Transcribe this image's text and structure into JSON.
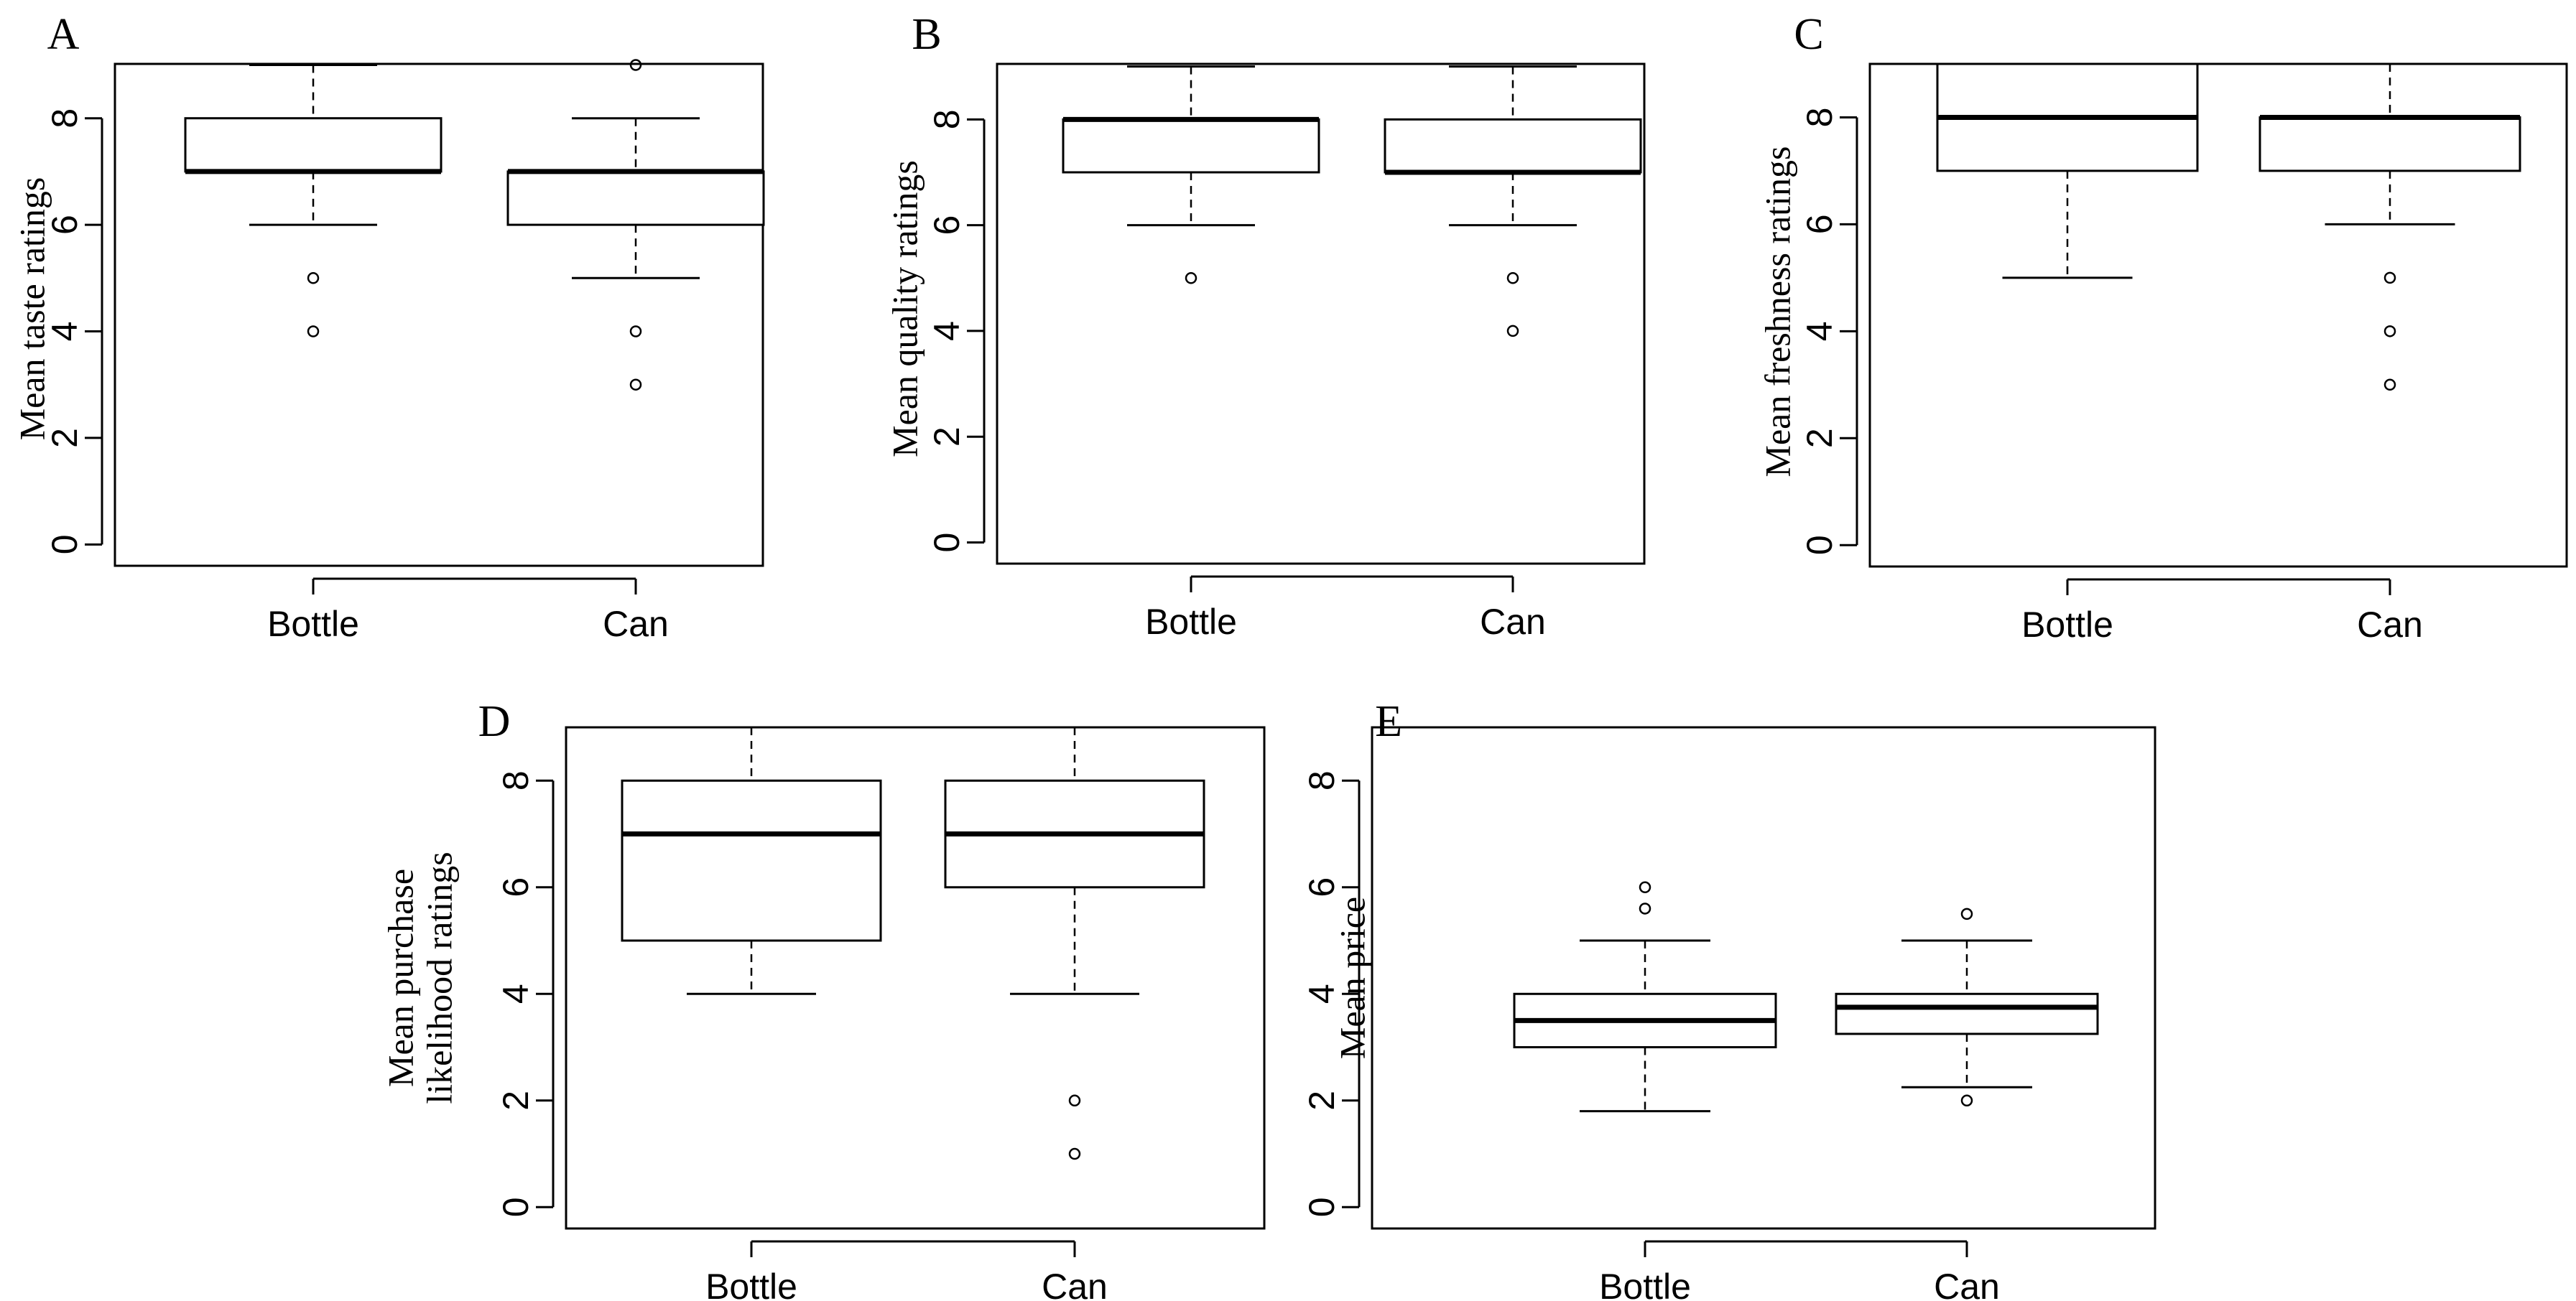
{
  "chart_data": [
    {
      "panel": "A",
      "type": "boxplot",
      "ylabel": [
        "Mean taste ratings"
      ],
      "categories": [
        "Bottle",
        "Can"
      ],
      "ylim": [
        0,
        9
      ],
      "yticks": [
        0,
        2,
        4,
        6,
        8
      ],
      "boxes": [
        {
          "name": "Bottle",
          "whisker_low": 6,
          "q1": 7,
          "median": 7,
          "q3": 8,
          "whisker_high": 9,
          "outliers": [
            5,
            4
          ]
        },
        {
          "name": "Can",
          "whisker_low": 5,
          "q1": 6,
          "median": 7,
          "q3": 7,
          "whisker_high": 8,
          "outliers": [
            9,
            4,
            3
          ]
        }
      ]
    },
    {
      "panel": "B",
      "type": "boxplot",
      "ylabel": [
        "Mean quality ratings"
      ],
      "categories": [
        "Bottle",
        "Can"
      ],
      "ylim": [
        0,
        9
      ],
      "yticks": [
        0,
        2,
        4,
        6,
        8
      ],
      "boxes": [
        {
          "name": "Bottle",
          "whisker_low": 6,
          "q1": 7,
          "median": 8,
          "q3": 8,
          "whisker_high": 9,
          "outliers": [
            5
          ]
        },
        {
          "name": "Can",
          "whisker_low": 6,
          "q1": 7,
          "median": 7,
          "q3": 8,
          "whisker_high": 9,
          "outliers": [
            5,
            4
          ]
        }
      ]
    },
    {
      "panel": "C",
      "type": "boxplot",
      "ylabel": [
        "Mean freshness ratings"
      ],
      "categories": [
        "Bottle",
        "Can"
      ],
      "ylim": [
        0,
        9
      ],
      "yticks": [
        0,
        2,
        4,
        6,
        8
      ],
      "boxes": [
        {
          "name": "Bottle",
          "whisker_low": 5,
          "q1": 7,
          "median": 8,
          "q3": 9,
          "whisker_high": 9,
          "outliers": []
        },
        {
          "name": "Can",
          "whisker_low": 6,
          "q1": 7,
          "median": 8,
          "q3": 8,
          "whisker_high": 9,
          "outliers": [
            5,
            4,
            3
          ]
        }
      ]
    },
    {
      "panel": "D",
      "type": "boxplot",
      "ylabel": [
        "Mean purchase",
        "likelihood ratings"
      ],
      "categories": [
        "Bottle",
        "Can"
      ],
      "ylim": [
        0,
        9
      ],
      "yticks": [
        0,
        2,
        4,
        6,
        8
      ],
      "boxes": [
        {
          "name": "Bottle",
          "whisker_low": 4,
          "q1": 5,
          "median": 7,
          "q3": 8,
          "whisker_high": 9,
          "outliers": []
        },
        {
          "name": "Can",
          "whisker_low": 4,
          "q1": 6,
          "median": 7,
          "q3": 8,
          "whisker_high": 9,
          "outliers": [
            2,
            1
          ]
        }
      ]
    },
    {
      "panel": "E",
      "type": "boxplot",
      "ylabel": [
        "Mean price"
      ],
      "categories": [
        "Bottle",
        "Can"
      ],
      "ylim": [
        0,
        9
      ],
      "yticks": [
        0,
        2,
        4,
        6,
        8
      ],
      "boxes": [
        {
          "name": "Bottle",
          "whisker_low": 1.8,
          "q1": 3,
          "median": 3.5,
          "q3": 4,
          "whisker_high": 5,
          "outliers": [
            6,
            5.6
          ]
        },
        {
          "name": "Can",
          "whisker_low": 2.25,
          "q1": 3.25,
          "median": 3.75,
          "q3": 4,
          "whisker_high": 5,
          "outliers": [
            5.5,
            2
          ]
        }
      ]
    }
  ]
}
